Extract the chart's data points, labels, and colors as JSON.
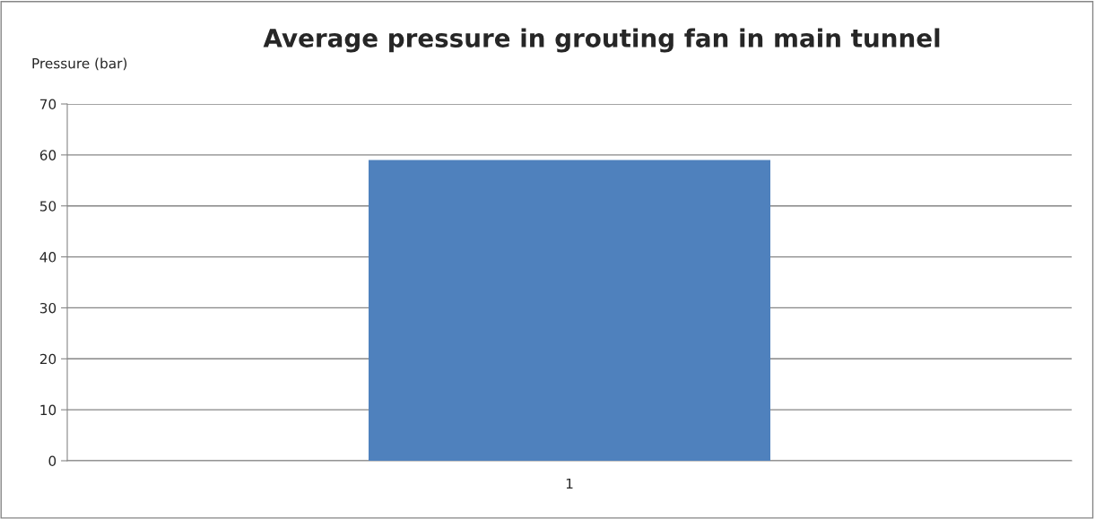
{
  "chart_data": {
    "type": "bar",
    "title": "Average pressure in grouting fan in main tunnel",
    "ylabel": "Pressure (bar)",
    "categories": [
      "1"
    ],
    "series": [
      {
        "color": "#4f81bd",
        "values": [
          59
        ]
      }
    ],
    "ylim": [
      0,
      70
    ],
    "yticks": [
      0,
      10,
      20,
      30,
      40,
      50,
      60,
      70
    ],
    "grid": "y"
  }
}
